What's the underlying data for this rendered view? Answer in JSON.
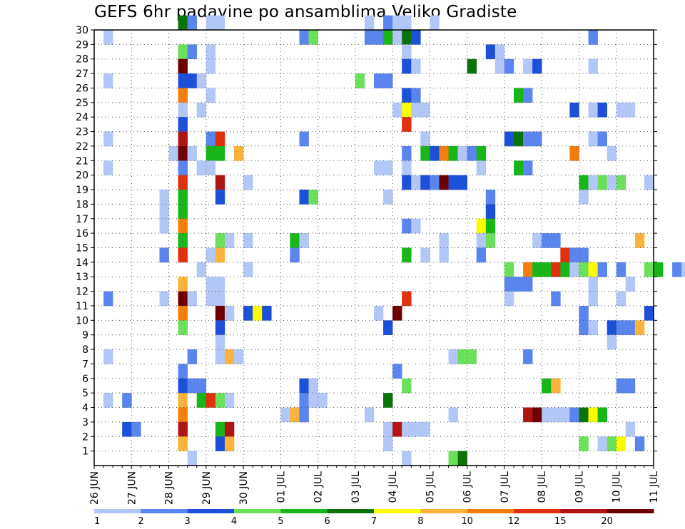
{
  "chart_data": {
    "type": "heatmap",
    "title": "GEFS 6hr padavine po ansamblima Veliko Gradiste",
    "xlabel": "",
    "ylabel": "",
    "y_ticks": [
      1,
      2,
      3,
      4,
      5,
      6,
      7,
      8,
      9,
      10,
      11,
      12,
      13,
      14,
      15,
      16,
      17,
      18,
      19,
      20,
      21,
      22,
      23,
      24,
      25,
      26,
      27,
      28,
      29,
      30
    ],
    "x_ticks": [
      "26 JUN",
      "27 JUN",
      "28 JUN",
      "29 JUN",
      "30 JUN",
      "01 JUL",
      "02 JUL",
      "03 JUL",
      "04 JUL",
      "05 JUL",
      "06 JUL",
      "07 JUL",
      "08 JUL",
      "09 JUL",
      "10 JUL",
      "11 JUL"
    ],
    "grid": true,
    "colorbar": {
      "labels": [
        "1",
        "2",
        "3",
        "4",
        "5",
        "6",
        "7",
        "8",
        "10",
        "12",
        "15",
        "20"
      ],
      "colors": [
        "#b3c7f7",
        "#5a85ee",
        "#1d50d9",
        "#6be05a",
        "#19b619",
        "#0a730a",
        "#fcfc03",
        "#fcb33c",
        "#f47e0d",
        "#e1300d",
        "#b01515",
        "#6e0000"
      ]
    },
    "cells": [
      [
        30,
        9,
        5
      ],
      [
        30,
        10,
        1
      ],
      [
        30,
        12,
        0
      ],
      [
        30,
        13,
        0
      ],
      [
        30,
        29,
        0
      ],
      [
        30,
        31,
        1
      ],
      [
        30,
        32,
        0
      ],
      [
        30,
        33,
        0
      ],
      [
        30,
        36,
        0
      ],
      [
        29,
        1,
        0
      ],
      [
        29,
        22,
        1
      ],
      [
        29,
        23,
        3
      ],
      [
        29,
        29,
        1
      ],
      [
        29,
        30,
        1
      ],
      [
        29,
        31,
        4
      ],
      [
        29,
        32,
        0
      ],
      [
        29,
        33,
        5
      ],
      [
        29,
        34,
        2
      ],
      [
        29,
        53,
        1
      ],
      [
        28,
        9,
        3
      ],
      [
        28,
        10,
        1
      ],
      [
        28,
        12,
        0
      ],
      [
        28,
        33,
        0
      ],
      [
        28,
        42,
        2
      ],
      [
        28,
        43,
        0
      ],
      [
        27,
        9,
        11
      ],
      [
        27,
        12,
        0
      ],
      [
        27,
        33,
        2
      ],
      [
        27,
        34,
        0
      ],
      [
        27,
        40,
        5
      ],
      [
        27,
        43,
        0
      ],
      [
        27,
        44,
        1
      ],
      [
        27,
        46,
        0
      ],
      [
        27,
        47,
        2
      ],
      [
        27,
        53,
        0
      ],
      [
        26,
        1,
        0
      ],
      [
        26,
        9,
        2
      ],
      [
        26,
        10,
        2
      ],
      [
        26,
        11,
        0
      ],
      [
        26,
        28,
        3
      ],
      [
        26,
        30,
        1
      ],
      [
        26,
        31,
        1
      ],
      [
        25,
        9,
        8
      ],
      [
        25,
        12,
        0
      ],
      [
        25,
        33,
        2
      ],
      [
        25,
        34,
        1
      ],
      [
        25,
        45,
        4
      ],
      [
        25,
        46,
        1
      ],
      [
        24,
        9,
        0
      ],
      [
        24,
        11,
        0
      ],
      [
        24,
        32,
        0
      ],
      [
        24,
        33,
        6
      ],
      [
        24,
        34,
        0
      ],
      [
        24,
        35,
        0
      ],
      [
        24,
        51,
        2
      ],
      [
        24,
        53,
        0
      ],
      [
        24,
        54,
        2
      ],
      [
        24,
        56,
        0
      ],
      [
        24,
        57,
        0
      ],
      [
        23,
        9,
        2
      ],
      [
        23,
        33,
        9
      ],
      [
        22,
        1,
        0
      ],
      [
        22,
        9,
        10
      ],
      [
        22,
        12,
        1
      ],
      [
        22,
        13,
        9
      ],
      [
        22,
        22,
        1
      ],
      [
        22,
        35,
        0
      ],
      [
        22,
        44,
        2
      ],
      [
        22,
        45,
        5
      ],
      [
        22,
        46,
        1
      ],
      [
        22,
        47,
        1
      ],
      [
        22,
        53,
        0
      ],
      [
        22,
        54,
        1
      ],
      [
        21,
        8,
        0
      ],
      [
        21,
        9,
        11
      ],
      [
        21,
        10,
        0
      ],
      [
        21,
        12,
        4
      ],
      [
        21,
        13,
        4
      ],
      [
        21,
        15,
        7
      ],
      [
        21,
        33,
        1
      ],
      [
        21,
        35,
        4
      ],
      [
        21,
        36,
        2
      ],
      [
        21,
        37,
        8
      ],
      [
        21,
        38,
        4
      ],
      [
        21,
        39,
        0
      ],
      [
        21,
        40,
        1
      ],
      [
        21,
        41,
        4
      ],
      [
        21,
        51,
        8
      ],
      [
        21,
        55,
        0
      ],
      [
        20,
        1,
        0
      ],
      [
        20,
        9,
        1
      ],
      [
        20,
        11,
        0
      ],
      [
        20,
        12,
        0
      ],
      [
        20,
        30,
        0
      ],
      [
        20,
        31,
        0
      ],
      [
        20,
        33,
        0
      ],
      [
        20,
        41,
        0
      ],
      [
        20,
        45,
        4
      ],
      [
        20,
        46,
        1
      ],
      [
        19,
        9,
        9
      ],
      [
        19,
        13,
        10
      ],
      [
        19,
        16,
        0
      ],
      [
        19,
        33,
        2
      ],
      [
        19,
        34,
        0
      ],
      [
        19,
        35,
        2
      ],
      [
        19,
        36,
        1
      ],
      [
        19,
        37,
        11
      ],
      [
        19,
        38,
        2
      ],
      [
        19,
        39,
        2
      ],
      [
        19,
        52,
        4
      ],
      [
        19,
        53,
        0
      ],
      [
        19,
        54,
        3
      ],
      [
        19,
        55,
        0
      ],
      [
        19,
        56,
        3
      ],
      [
        19,
        59,
        0
      ],
      [
        18,
        7,
        0
      ],
      [
        18,
        9,
        4
      ],
      [
        18,
        13,
        2
      ],
      [
        18,
        22,
        2
      ],
      [
        18,
        23,
        3
      ],
      [
        18,
        31,
        0
      ],
      [
        18,
        42,
        1
      ],
      [
        18,
        52,
        0
      ],
      [
        17,
        7,
        0
      ],
      [
        17,
        9,
        4
      ],
      [
        17,
        42,
        2
      ],
      [
        16,
        7,
        0
      ],
      [
        16,
        9,
        8
      ],
      [
        16,
        33,
        1
      ],
      [
        16,
        34,
        0
      ],
      [
        16,
        41,
        6
      ],
      [
        16,
        42,
        4
      ],
      [
        15,
        9,
        4
      ],
      [
        15,
        13,
        3
      ],
      [
        15,
        14,
        0
      ],
      [
        15,
        16,
        0
      ],
      [
        15,
        21,
        4
      ],
      [
        15,
        22,
        0
      ],
      [
        15,
        37,
        0
      ],
      [
        15,
        41,
        0
      ],
      [
        15,
        42,
        3
      ],
      [
        15,
        47,
        0
      ],
      [
        15,
        48,
        1
      ],
      [
        15,
        49,
        1
      ],
      [
        15,
        58,
        7
      ],
      [
        14,
        7,
        1
      ],
      [
        14,
        9,
        9
      ],
      [
        14,
        12,
        0
      ],
      [
        14,
        13,
        7
      ],
      [
        14,
        21,
        1
      ],
      [
        14,
        33,
        4
      ],
      [
        14,
        35,
        0
      ],
      [
        14,
        37,
        0
      ],
      [
        14,
        41,
        1
      ],
      [
        14,
        50,
        9
      ],
      [
        14,
        51,
        1
      ],
      [
        14,
        52,
        1
      ],
      [
        13,
        11,
        0
      ],
      [
        13,
        16,
        0
      ],
      [
        13,
        44,
        3
      ],
      [
        13,
        46,
        8
      ],
      [
        13,
        47,
        4
      ],
      [
        13,
        48,
        4
      ],
      [
        13,
        49,
        9
      ],
      [
        13,
        50,
        4
      ],
      [
        13,
        51,
        0
      ],
      [
        13,
        52,
        3
      ],
      [
        13,
        53,
        6
      ],
      [
        13,
        54,
        1
      ],
      [
        13,
        56,
        1
      ],
      [
        13,
        59,
        3
      ],
      [
        13,
        60,
        4
      ],
      [
        13,
        62,
        1
      ],
      [
        13,
        63,
        0
      ],
      [
        12,
        9,
        7
      ],
      [
        12,
        12,
        0
      ],
      [
        12,
        13,
        0
      ],
      [
        12,
        44,
        1
      ],
      [
        12,
        45,
        1
      ],
      [
        12,
        46,
        1
      ],
      [
        12,
        53,
        0
      ],
      [
        12,
        57,
        0
      ],
      [
        11,
        1,
        1
      ],
      [
        11,
        7,
        0
      ],
      [
        11,
        9,
        11
      ],
      [
        11,
        10,
        0
      ],
      [
        11,
        12,
        0
      ],
      [
        11,
        13,
        0
      ],
      [
        11,
        33,
        9
      ],
      [
        11,
        44,
        0
      ],
      [
        11,
        49,
        1
      ],
      [
        11,
        53,
        0
      ],
      [
        11,
        56,
        0
      ],
      [
        10,
        9,
        8
      ],
      [
        10,
        13,
        11
      ],
      [
        10,
        14,
        0
      ],
      [
        10,
        16,
        2
      ],
      [
        10,
        17,
        6
      ],
      [
        10,
        18,
        2
      ],
      [
        10,
        30,
        0
      ],
      [
        10,
        32,
        11
      ],
      [
        10,
        52,
        1
      ],
      [
        10,
        59,
        2
      ],
      [
        9,
        9,
        3
      ],
      [
        9,
        13,
        2
      ],
      [
        9,
        31,
        2
      ],
      [
        9,
        52,
        1
      ],
      [
        9,
        53,
        0
      ],
      [
        9,
        55,
        2
      ],
      [
        9,
        56,
        1
      ],
      [
        9,
        57,
        1
      ],
      [
        9,
        58,
        7
      ],
      [
        8,
        13,
        0
      ],
      [
        8,
        55,
        0
      ],
      [
        7,
        1,
        0
      ],
      [
        7,
        10,
        1
      ],
      [
        7,
        13,
        0
      ],
      [
        7,
        14,
        7
      ],
      [
        7,
        15,
        0
      ],
      [
        7,
        38,
        0
      ],
      [
        7,
        39,
        3
      ],
      [
        7,
        40,
        3
      ],
      [
        7,
        46,
        1
      ],
      [
        6,
        9,
        1
      ],
      [
        6,
        32,
        1
      ],
      [
        5,
        9,
        2
      ],
      [
        5,
        10,
        1
      ],
      [
        5,
        11,
        1
      ],
      [
        5,
        22,
        2
      ],
      [
        5,
        23,
        0
      ],
      [
        5,
        33,
        3
      ],
      [
        5,
        48,
        4
      ],
      [
        5,
        49,
        7
      ],
      [
        5,
        56,
        1
      ],
      [
        5,
        57,
        1
      ],
      [
        4,
        1,
        0
      ],
      [
        4,
        3,
        1
      ],
      [
        4,
        9,
        7
      ],
      [
        4,
        11,
        4
      ],
      [
        4,
        12,
        9
      ],
      [
        4,
        13,
        3
      ],
      [
        4,
        14,
        0
      ],
      [
        4,
        22,
        1
      ],
      [
        4,
        23,
        0
      ],
      [
        4,
        24,
        0
      ],
      [
        4,
        31,
        5
      ],
      [
        3,
        9,
        8
      ],
      [
        3,
        20,
        0
      ],
      [
        3,
        21,
        7
      ],
      [
        3,
        22,
        1
      ],
      [
        3,
        29,
        0
      ],
      [
        3,
        38,
        0
      ],
      [
        3,
        46,
        10
      ],
      [
        3,
        47,
        11
      ],
      [
        3,
        48,
        0
      ],
      [
        3,
        49,
        0
      ],
      [
        3,
        50,
        0
      ],
      [
        3,
        51,
        1
      ],
      [
        3,
        52,
        5
      ],
      [
        3,
        53,
        6
      ],
      [
        3,
        54,
        4
      ],
      [
        2,
        3,
        2
      ],
      [
        2,
        4,
        1
      ],
      [
        2,
        9,
        10
      ],
      [
        2,
        13,
        4
      ],
      [
        2,
        14,
        10
      ],
      [
        2,
        31,
        0
      ],
      [
        2,
        32,
        10
      ],
      [
        2,
        33,
        0
      ],
      [
        2,
        34,
        0
      ],
      [
        2,
        35,
        0
      ],
      [
        2,
        57,
        0
      ],
      [
        1,
        9,
        7
      ],
      [
        1,
        13,
        2
      ],
      [
        1,
        14,
        7
      ],
      [
        1,
        31,
        0
      ],
      [
        1,
        52,
        3
      ],
      [
        1,
        54,
        0
      ],
      [
        1,
        55,
        3
      ],
      [
        1,
        56,
        6
      ],
      [
        1,
        58,
        1
      ],
      [
        0,
        10,
        0
      ],
      [
        0,
        33,
        0
      ],
      [
        0,
        38,
        3
      ],
      [
        0,
        39,
        5
      ]
    ]
  }
}
